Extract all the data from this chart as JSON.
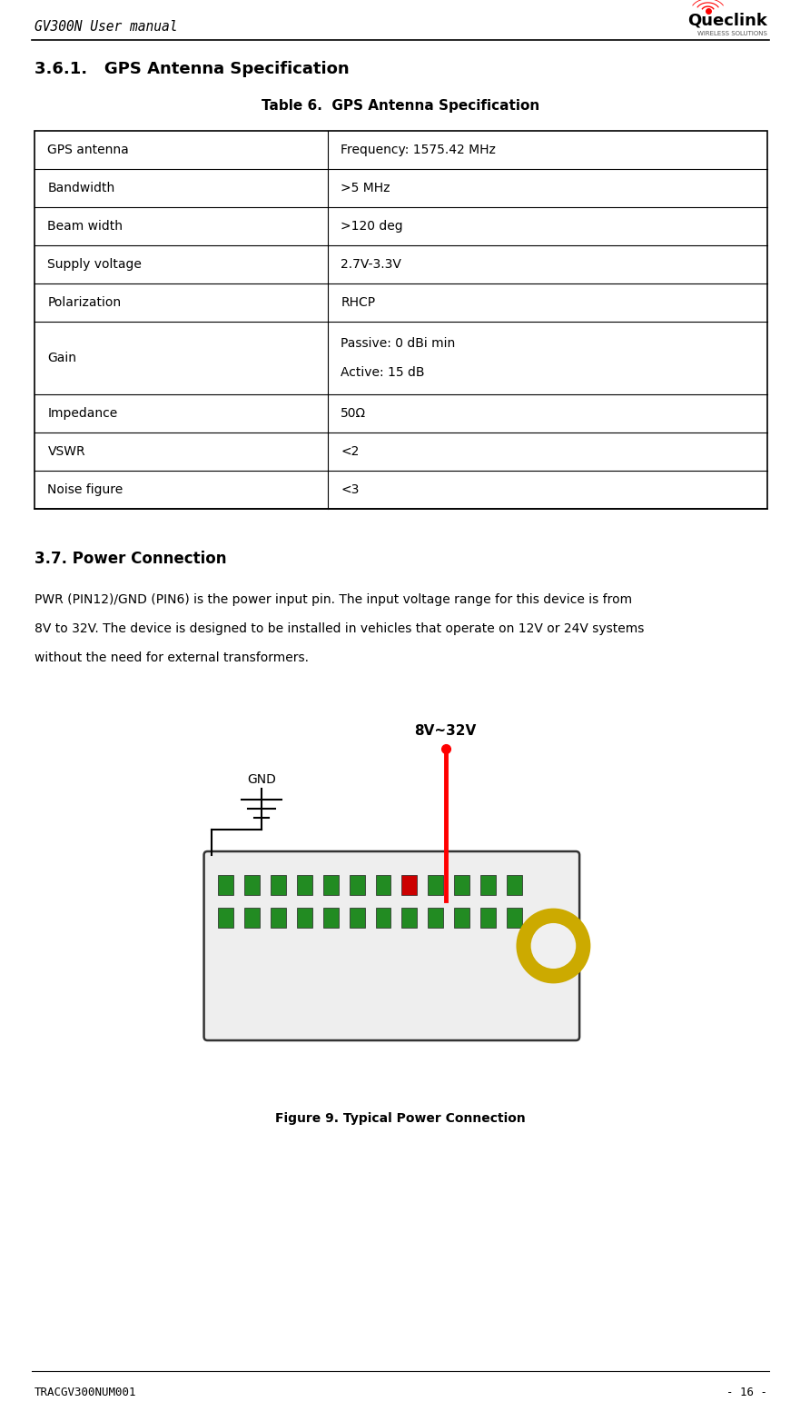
{
  "page_title_left": "GV300N User manual",
  "page_footer_left": "TRACGV300NUM001",
  "page_footer_right": "- 16 -",
  "section_heading": "3.6.1.   GPS Antenna Specification",
  "table_title": "Table 6.  GPS Antenna Specification",
  "table_rows": [
    [
      "GPS antenna",
      "Frequency: 1575.42 MHz"
    ],
    [
      "Bandwidth",
      ">5 MHz"
    ],
    [
      "Beam width",
      ">120 deg"
    ],
    [
      "Supply voltage",
      "2.7V-3.3V"
    ],
    [
      "Polarization",
      "RHCP"
    ],
    [
      "Gain",
      "Passive: 0 dBi min\nActive: 15 dB"
    ],
    [
      "Impedance",
      "50Ω"
    ],
    [
      "VSWR",
      "<2"
    ],
    [
      "Noise figure",
      "<3"
    ]
  ],
  "section2_heading": "3.7. Power Connection",
  "section2_body": "PWR (PIN12)/GND (PIN6) is the power input pin. The input voltage range for this device is from\n8V to 32V. The device is designed to be installed in vehicles that operate on 12V or 24V systems\nwithout the need for external transformers.",
  "figure_caption": "Figure 9. Typical Power Connection",
  "bg_color": "#ffffff",
  "text_color": "#000000",
  "table_border_color": "#000000",
  "header_line_color": "#000000"
}
